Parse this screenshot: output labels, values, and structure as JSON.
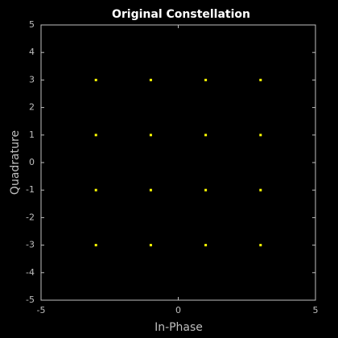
{
  "chart_data": {
    "type": "scatter",
    "title": "Original Constellation",
    "xlabel": "In-Phase",
    "ylabel": "Quadrature",
    "x": [
      -3,
      -1,
      1,
      3,
      -3,
      -1,
      1,
      3,
      -3,
      -1,
      1,
      3,
      -3,
      -1,
      1,
      3
    ],
    "values": [
      3,
      3,
      3,
      3,
      1,
      1,
      1,
      1,
      -1,
      -1,
      -1,
      -1,
      -3,
      -3,
      -3,
      -3
    ],
    "color": "#ffff00",
    "xlim": [
      -5,
      5
    ],
    "xticks": [
      -5,
      0,
      5
    ],
    "ylim": [
      -5,
      5
    ],
    "yticks": [
      -5,
      -4,
      -3,
      -2,
      -1,
      0,
      1,
      2,
      3,
      4,
      5
    ]
  }
}
